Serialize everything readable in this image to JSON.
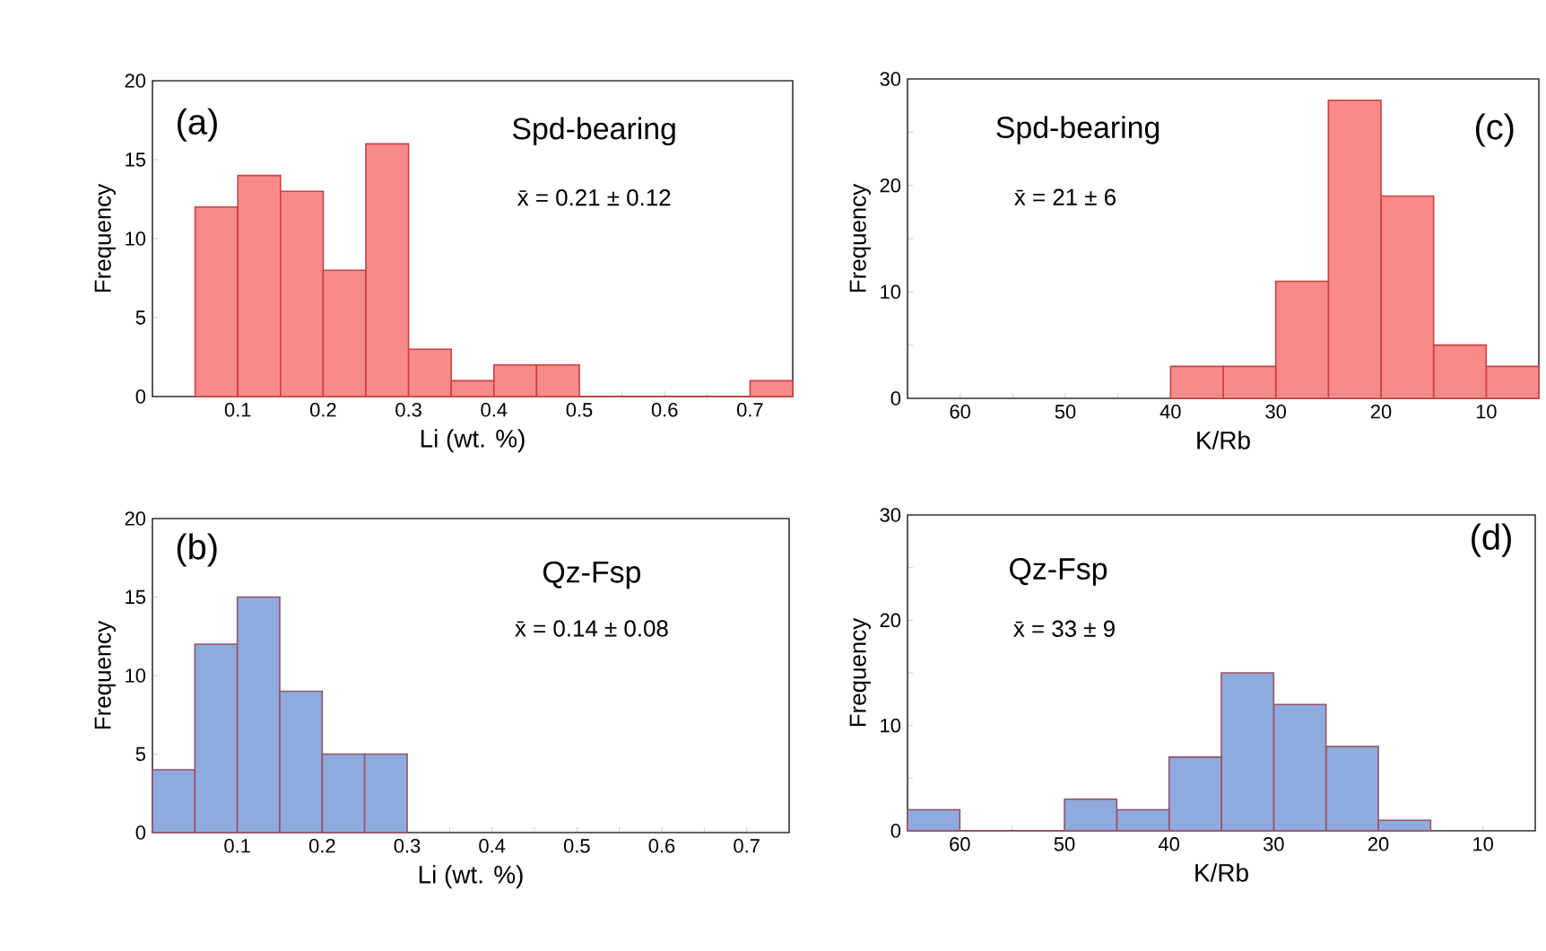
{
  "chart_data": [
    {
      "type": "histogram",
      "bins": [
        0.05,
        0.1,
        0.15,
        0.2,
        0.25,
        0.3,
        0.35,
        0.4,
        0.45,
        0.5,
        0.55,
        0.6,
        0.65,
        0.7,
        0.75
      ],
      "values": [
        12,
        14,
        13,
        8,
        16,
        3,
        1,
        2,
        2,
        0,
        0,
        0,
        0,
        1
      ],
      "color": "#f98a8a",
      "xlabel": "Li (wt. %)",
      "ylabel": "Frequency",
      "xlim": [
        0,
        0.75
      ],
      "ylim": [
        0,
        20
      ],
      "xticks": [
        {
          "value": 0.0,
          "label": null
        },
        {
          "value": 0.05,
          "label": null
        },
        {
          "value": 0.1,
          "label": "0.1"
        },
        {
          "value": 0.15,
          "label": null
        },
        {
          "value": 0.2,
          "label": "0.2"
        },
        {
          "value": 0.25,
          "label": null
        },
        {
          "value": 0.3,
          "label": "0.3"
        },
        {
          "value": 0.35,
          "label": null
        },
        {
          "value": 0.4,
          "label": "0.4"
        },
        {
          "value": 0.45,
          "label": null
        },
        {
          "value": 0.5,
          "label": "0.5"
        },
        {
          "value": 0.55,
          "label": null
        },
        {
          "value": 0.6,
          "label": "0.6"
        },
        {
          "value": 0.65,
          "label": null
        },
        {
          "value": 0.7,
          "label": "0.7"
        }
      ],
      "yticks": [
        0,
        5,
        10,
        15,
        20
      ],
      "annotations": [
        "(a)",
        "Spd-bearing",
        "x̄ = 0.21 ± 0.12"
      ]
    },
    {
      "type": "histogram",
      "bins": [
        5,
        10,
        15,
        20,
        25,
        30,
        35,
        40
      ],
      "values": [
        3,
        5,
        19,
        28,
        11,
        3,
        3
      ],
      "color": "#f98a8a",
      "xlabel": "K/Rb",
      "ylabel": "Frequency",
      "xlim": [
        65,
        5
      ],
      "ylim": [
        0,
        30
      ],
      "xticks": [
        {
          "value": 10,
          "label": "10"
        },
        {
          "value": 15,
          "label": null
        },
        {
          "value": 20,
          "label": "20"
        },
        {
          "value": 25,
          "label": null
        },
        {
          "value": 30,
          "label": "30"
        },
        {
          "value": 35,
          "label": null
        },
        {
          "value": 40,
          "label": "40"
        },
        {
          "value": 45,
          "label": null
        },
        {
          "value": 50,
          "label": "50"
        },
        {
          "value": 55,
          "label": null
        },
        {
          "value": 60,
          "label": "60"
        }
      ],
      "yticks": [
        {
          "value": 0,
          "label": "0"
        },
        {
          "value": 5,
          "label": null
        },
        {
          "value": 10,
          "label": "10"
        },
        {
          "value": 15,
          "label": null
        },
        {
          "value": 20,
          "label": "20"
        },
        {
          "value": 25,
          "label": null
        },
        {
          "value": 30,
          "label": "30"
        }
      ],
      "annotations": [
        "(c)",
        "Spd-bearing",
        "x̄ = 21 ± 6"
      ]
    },
    {
      "type": "histogram",
      "bins": [
        0,
        0.05,
        0.1,
        0.15,
        0.2,
        0.25,
        0.3
      ],
      "values": [
        4,
        12,
        15,
        9,
        5,
        5
      ],
      "color": "#8faadc",
      "xlabel": "Li (wt. %)",
      "ylabel": "Frequency",
      "xlim": [
        0,
        0.75
      ],
      "ylim": [
        0,
        20
      ],
      "xticks": [
        {
          "value": 0.0,
          "label": null
        },
        {
          "value": 0.05,
          "label": null
        },
        {
          "value": 0.1,
          "label": "0.1"
        },
        {
          "value": 0.15,
          "label": null
        },
        {
          "value": 0.2,
          "label": "0.2"
        },
        {
          "value": 0.25,
          "label": null
        },
        {
          "value": 0.3,
          "label": "0.3"
        },
        {
          "value": 0.35,
          "label": null
        },
        {
          "value": 0.4,
          "label": "0.4"
        },
        {
          "value": 0.45,
          "label": null
        },
        {
          "value": 0.5,
          "label": "0.5"
        },
        {
          "value": 0.55,
          "label": null
        },
        {
          "value": 0.6,
          "label": "0.6"
        },
        {
          "value": 0.65,
          "label": null
        },
        {
          "value": 0.7,
          "label": "0.7"
        }
      ],
      "yticks": [
        0,
        5,
        10,
        15,
        20
      ],
      "annotations": [
        "(b)",
        "Qz-Fsp",
        "x̄ = 0.14 ± 0.08"
      ]
    },
    {
      "type": "histogram",
      "bins": [
        15,
        20,
        25,
        30,
        35,
        40,
        45,
        50,
        55,
        60,
        65
      ],
      "values": [
        1,
        8,
        12,
        15,
        7,
        2,
        3,
        0,
        0,
        2
      ],
      "color": "#8faadc",
      "xlabel": "K/Rb",
      "ylabel": "Frequency",
      "xlim": [
        65,
        5
      ],
      "ylim": [
        0,
        30
      ],
      "xticks": [
        {
          "value": 10,
          "label": "10"
        },
        {
          "value": 15,
          "label": null
        },
        {
          "value": 20,
          "label": "20"
        },
        {
          "value": 25,
          "label": null
        },
        {
          "value": 30,
          "label": "30"
        },
        {
          "value": 35,
          "label": null
        },
        {
          "value": 40,
          "label": "40"
        },
        {
          "value": 45,
          "label": null
        },
        {
          "value": 50,
          "label": "50"
        },
        {
          "value": 55,
          "label": null
        },
        {
          "value": 60,
          "label": "60"
        }
      ],
      "yticks": [
        {
          "value": 0,
          "label": "0"
        },
        {
          "value": 5,
          "label": null
        },
        {
          "value": 10,
          "label": "10"
        },
        {
          "value": 15,
          "label": null
        },
        {
          "value": 20,
          "label": "20"
        },
        {
          "value": 25,
          "label": null
        },
        {
          "value": 30,
          "label": "30"
        }
      ],
      "annotations": [
        "(d)",
        "Qz-Fsp",
        "x̄ = 33 ± 9"
      ]
    }
  ]
}
